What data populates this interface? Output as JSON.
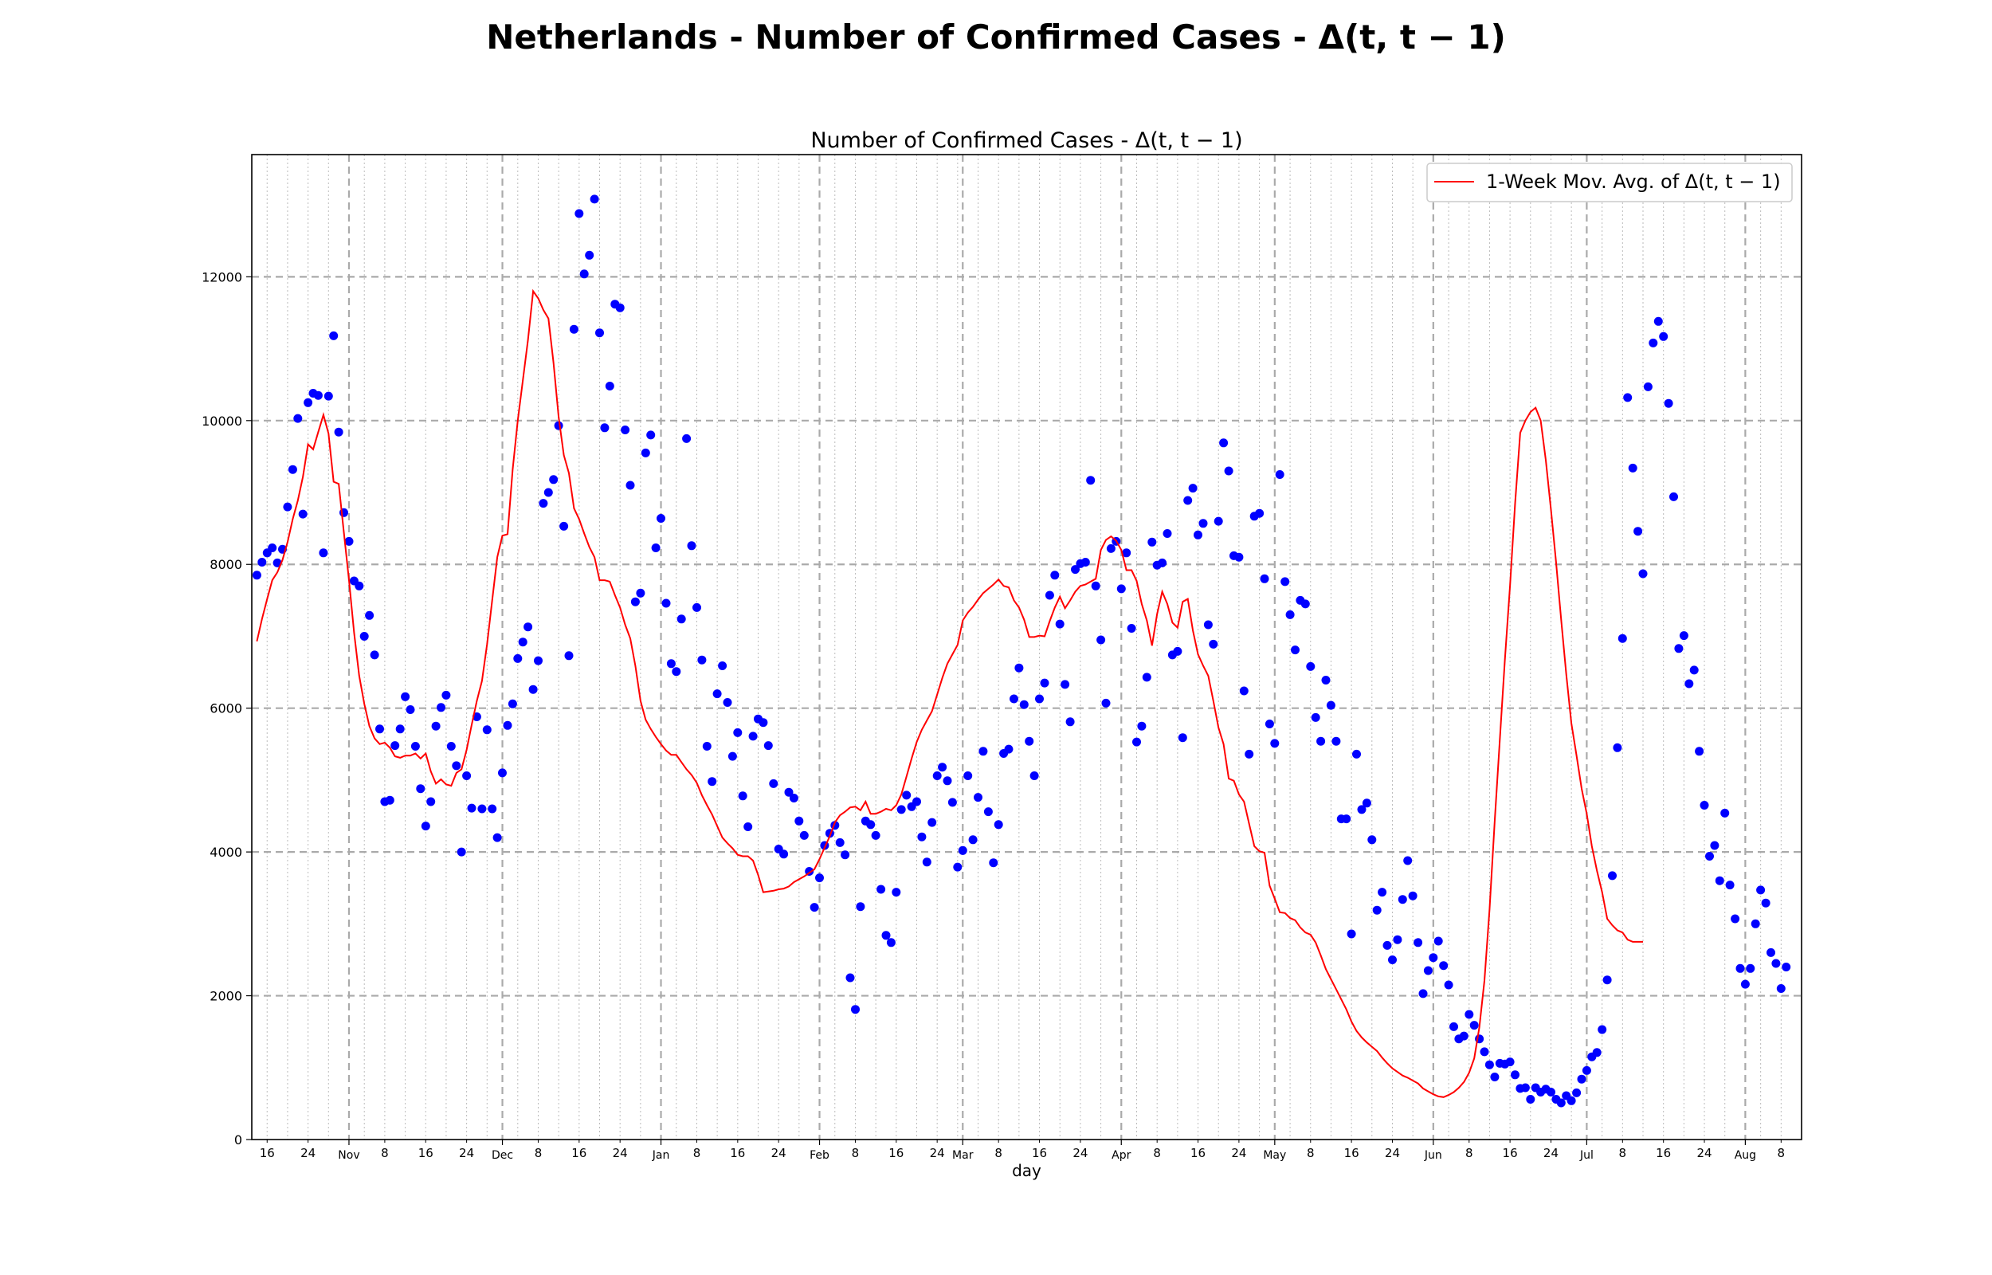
{
  "figure": {
    "suptitle": "Netherlands - Number of Confirmed Cases - Δ(t, t − 1)"
  },
  "chart_data": {
    "type": "scatter",
    "title": "Number of Confirmed Cases - Δ(t, t − 1)",
    "xlabel": "day",
    "ylabel": "",
    "ylim": [
      0,
      13700
    ],
    "xlim": [
      "2020-10-13",
      "2021-08-12"
    ],
    "yticks": [
      0,
      2000,
      4000,
      6000,
      8000,
      10000,
      12000
    ],
    "month_ticks": [
      {
        "date": "2020-11-01",
        "label": "Nov"
      },
      {
        "date": "2020-12-01",
        "label": "Dec"
      },
      {
        "date": "2021-01-01",
        "label": "Jan"
      },
      {
        "date": "2021-02-01",
        "label": "Feb"
      },
      {
        "date": "2021-03-01",
        "label": "Mar"
      },
      {
        "date": "2021-04-01",
        "label": "Apr"
      },
      {
        "date": "2021-05-01",
        "label": "May"
      },
      {
        "date": "2021-06-01",
        "label": "Jun"
      },
      {
        "date": "2021-07-01",
        "label": "Jul"
      },
      {
        "date": "2021-08-01",
        "label": "Aug"
      }
    ],
    "day_ticks": [
      8,
      16,
      24
    ],
    "grid": true,
    "legend_position": "top-right",
    "colors": {
      "points": "#0000ff",
      "line": "#ff0000",
      "grid": "#aaaaaa"
    },
    "start_date": "2020-10-14",
    "series": [
      {
        "type": "scatter",
        "values": [
          7850,
          8030,
          8160,
          8230,
          8020,
          8210,
          8800,
          9320,
          10030,
          8700,
          10250,
          10380,
          10350,
          8160,
          10340,
          11180,
          9840,
          8720,
          8320,
          7770,
          7700,
          7000,
          7290,
          6740,
          5710,
          4700,
          4720,
          5480,
          5710,
          6160,
          5980,
          5470,
          4880,
          4360,
          4700,
          5750,
          6010,
          6180,
          5470,
          5200,
          4000,
          5060,
          4610,
          5880,
          4600,
          5700,
          4600,
          4200,
          5100,
          5760,
          6060,
          6690,
          6920,
          7130,
          6260,
          6660,
          8850,
          9000,
          9180,
          9930,
          8530,
          6730,
          11270,
          12880,
          12040,
          12300,
          13080,
          11220,
          9900,
          10480,
          11620,
          11570,
          9870,
          9100,
          7480,
          7600,
          9550,
          9800,
          8230,
          8640,
          7460,
          6620,
          6510,
          7240,
          9750,
          8260,
          7400,
          6670,
          5470,
          4980,
          6200,
          6590,
          6080,
          5330,
          5660,
          4780,
          4350,
          5610,
          5850,
          5800,
          5480,
          4950,
          4040,
          3970,
          4830,
          4750,
          4430,
          4230,
          3730,
          3230,
          3640,
          4090,
          4260,
          4370,
          4130,
          3960,
          2250,
          1810,
          3240,
          4430,
          4380,
          4230,
          3480,
          2840,
          2740,
          3440,
          4590,
          4790,
          4630,
          4700,
          4210,
          3860,
          4410,
          5060,
          5180,
          4990,
          4690,
          3790,
          4020,
          5060,
          4170,
          4760,
          5400,
          4560,
          3850,
          4380,
          5370,
          5430,
          6130,
          6560,
          6050,
          5540,
          5060,
          6130,
          6350,
          7570,
          7850,
          7170,
          6330,
          5810,
          7930,
          8010,
          8030,
          9170,
          7700,
          6950,
          6070,
          8220,
          8320,
          7660,
          8160,
          7110,
          5530,
          5750,
          6430,
          8310,
          7990,
          8020,
          8430,
          6740,
          6790,
          5590,
          8890,
          9060,
          8410,
          8570,
          7160,
          6890,
          8600,
          9690,
          9300,
          8120,
          8100,
          6240,
          5360,
          8670,
          8710,
          7800,
          5780,
          5510,
          9250,
          7760,
          7300,
          6810,
          7500,
          7450,
          6580,
          5870,
          5540,
          6390,
          6040,
          5540,
          4460,
          4460,
          2860,
          5360,
          4590,
          4680,
          4170,
          3190,
          3440,
          2700,
          2500,
          2780,
          3340,
          3880,
          3390,
          2740,
          2030,
          2350,
          2530,
          2760,
          2420,
          2150,
          1570,
          1400,
          1440,
          1740,
          1590,
          1400,
          1220,
          1040,
          870,
          1060,
          1050,
          1080,
          900,
          710,
          720,
          560,
          720,
          660,
          700,
          660,
          560,
          510,
          610,
          540,
          650,
          840,
          960,
          1150,
          1210,
          1530,
          2220,
          3670,
          5450,
          6970,
          10320,
          9340,
          8460,
          7870,
          10470,
          11080,
          11380,
          11170,
          10240,
          8940,
          6830,
          7010,
          6340,
          6530,
          5400,
          4650,
          3940,
          4090,
          3600,
          4540,
          3540,
          3070,
          2380,
          2160,
          2380,
          3000,
          3470,
          3290,
          2600,
          2450,
          2100,
          2400
        ]
      },
      {
        "type": "line",
        "name": "1-Week Mov. Avg. of Δ(t, t − 1)",
        "values": [
          6930,
          7240,
          7520,
          7780,
          7890,
          8060,
          8310,
          8630,
          8890,
          9220,
          9670,
          9600,
          9840,
          10080,
          9820,
          9150,
          9120,
          8450,
          7780,
          7050,
          6450,
          6060,
          5750,
          5580,
          5500,
          5520,
          5450,
          5330,
          5310,
          5340,
          5340,
          5370,
          5300,
          5370,
          5120,
          4950,
          5010,
          4940,
          4920,
          5100,
          5150,
          5420,
          5770,
          6100,
          6380,
          6890,
          7500,
          8100,
          8400,
          8420,
          9320,
          10000,
          10560,
          11120,
          11800,
          11700,
          11540,
          11420,
          10800,
          10050,
          9520,
          9270,
          8780,
          8630,
          8430,
          8240,
          8100,
          7780,
          7780,
          7760,
          7570,
          7400,
          7160,
          6970,
          6590,
          6100,
          5840,
          5710,
          5600,
          5500,
          5410,
          5350,
          5350,
          5250,
          5150,
          5070,
          4960,
          4790,
          4650,
          4520,
          4360,
          4200,
          4120,
          4050,
          3960,
          3940,
          3940,
          3880,
          3680,
          3440,
          3450,
          3460,
          3480,
          3490,
          3520,
          3580,
          3620,
          3660,
          3710,
          3760,
          3900,
          4060,
          4220,
          4410,
          4510,
          4560,
          4620,
          4630,
          4580,
          4700,
          4530,
          4530,
          4560,
          4600,
          4580,
          4650,
          4800,
          5050,
          5300,
          5530,
          5700,
          5830,
          5960,
          6190,
          6420,
          6620,
          6750,
          6880,
          7220,
          7330,
          7410,
          7510,
          7600,
          7660,
          7720,
          7790,
          7700,
          7680,
          7500,
          7400,
          7230,
          6990,
          6990,
          7010,
          7000,
          7210,
          7400,
          7550,
          7390,
          7500,
          7620,
          7700,
          7720,
          7760,
          7800,
          8200,
          8340,
          8390,
          8330,
          8200,
          7920,
          7920,
          7770,
          7450,
          7220,
          6870,
          7310,
          7620,
          7450,
          7190,
          7120,
          7480,
          7520,
          7080,
          6750,
          6590,
          6450,
          6100,
          5730,
          5500,
          5020,
          4990,
          4800,
          4700,
          4390,
          4080,
          4010,
          3990,
          3530,
          3350,
          3160,
          3150,
          3080,
          3050,
          2950,
          2880,
          2850,
          2740,
          2560,
          2370,
          2230,
          2090,
          1950,
          1810,
          1640,
          1510,
          1420,
          1350,
          1290,
          1230,
          1140,
          1060,
          990,
          940,
          890,
          860,
          820,
          780,
          710,
          670,
          630,
          600,
          590,
          620,
          660,
          720,
          800,
          930,
          1130,
          1560,
          2210,
          3200,
          4430,
          5560,
          6680,
          7700,
          8850,
          9830,
          10000,
          10120,
          10180,
          10000,
          9450,
          8760,
          8030,
          7230,
          6470,
          5790,
          5340,
          4880,
          4530,
          4080,
          3740,
          3440,
          3070,
          2980,
          2910,
          2880,
          2780,
          2750,
          2750,
          2750
        ]
      }
    ]
  }
}
